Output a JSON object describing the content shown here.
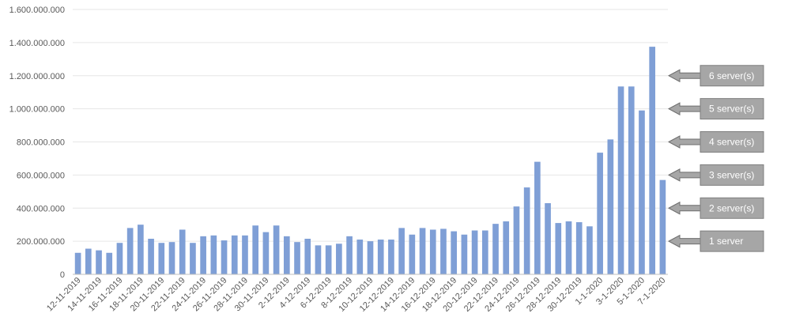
{
  "chart_data": {
    "type": "bar",
    "title": "",
    "xlabel": "",
    "ylabel": "",
    "ylim": [
      0,
      1600000000
    ],
    "y_ticks": [
      "0",
      "200.000.000",
      "400.000.000",
      "600.000.000",
      "800.000.000",
      "1.000.000.000",
      "1.200.000.000",
      "1.400.000.000",
      "1.600.000.000"
    ],
    "grid": true,
    "bar_color": "#7f9fd6",
    "categories": [
      "12-11-2019",
      "13-11-2019",
      "14-11-2019",
      "15-11-2019",
      "16-11-2019",
      "17-11-2019",
      "18-11-2019",
      "19-11-2019",
      "20-11-2019",
      "21-11-2019",
      "22-11-2019",
      "23-11-2019",
      "24-11-2019",
      "25-11-2019",
      "26-11-2019",
      "27-11-2019",
      "28-11-2019",
      "29-11-2019",
      "30-11-2019",
      "1-12-2019",
      "2-12-2019",
      "3-12-2019",
      "4-12-2019",
      "5-12-2019",
      "6-12-2019",
      "7-12-2019",
      "8-12-2019",
      "9-12-2019",
      "10-12-2019",
      "11-12-2019",
      "12-12-2019",
      "13-12-2019",
      "14-12-2019",
      "15-12-2019",
      "16-12-2019",
      "17-12-2019",
      "18-12-2019",
      "19-12-2019",
      "20-12-2019",
      "21-12-2019",
      "22-12-2019",
      "23-12-2019",
      "24-12-2019",
      "25-12-2019",
      "26-12-2019",
      "27-12-2019",
      "28-12-2019",
      "29-12-2019",
      "30-12-2019",
      "31-12-2019",
      "1-1-2020",
      "2-1-2020",
      "3-1-2020",
      "4-1-2020",
      "5-1-2020",
      "6-1-2020",
      "7-1-2020"
    ],
    "x_tick_labels": [
      "12-11-2019",
      "14-11-2019",
      "16-11-2019",
      "18-11-2019",
      "20-11-2019",
      "22-11-2019",
      "24-11-2019",
      "26-11-2019",
      "28-11-2019",
      "30-11-2019",
      "2-12-2019",
      "4-12-2019",
      "6-12-2019",
      "8-12-2019",
      "10-12-2019",
      "12-12-2019",
      "14-12-2019",
      "16-12-2019",
      "18-12-2019",
      "20-12-2019",
      "22-12-2019",
      "24-12-2019",
      "26-12-2019",
      "28-12-2019",
      "30-12-2019",
      "1-1-2020",
      "3-1-2020",
      "5-1-2020",
      "7-1-2020"
    ],
    "values": [
      130000000,
      155000000,
      145000000,
      130000000,
      190000000,
      280000000,
      300000000,
      215000000,
      190000000,
      195000000,
      270000000,
      190000000,
      230000000,
      235000000,
      205000000,
      235000000,
      235000000,
      295000000,
      255000000,
      295000000,
      230000000,
      195000000,
      215000000,
      175000000,
      175000000,
      185000000,
      230000000,
      210000000,
      200000000,
      210000000,
      210000000,
      280000000,
      240000000,
      280000000,
      270000000,
      275000000,
      260000000,
      240000000,
      265000000,
      265000000,
      305000000,
      320000000,
      410000000,
      525000000,
      680000000,
      430000000,
      310000000,
      320000000,
      315000000,
      290000000,
      735000000,
      815000000,
      1135000000,
      1135000000,
      990000000,
      1375000000,
      570000000
    ],
    "annotations": [
      {
        "label": "6 server(s)",
        "value": 1200000000
      },
      {
        "label": "5 server(s)",
        "value": 1000000000
      },
      {
        "label": "4 server(s)",
        "value": 800000000
      },
      {
        "label": "3 server(s)",
        "value": 600000000
      },
      {
        "label": "2 server(s)",
        "value": 400000000
      },
      {
        "label": "1 server",
        "value": 200000000
      }
    ]
  }
}
